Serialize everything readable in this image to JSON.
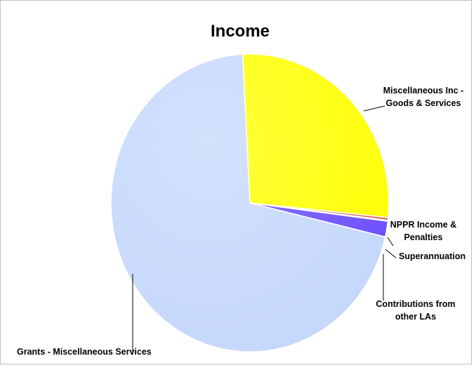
{
  "chart_data": {
    "type": "pie",
    "title": "Income",
    "categories": [
      "Miscellaneous Inc - Goods & Services",
      "NPPR Income & Penalties",
      "Superannuation",
      "Contributions from other LAs",
      "Grants - Miscellaneous Services"
    ],
    "values": [
      27.4,
      0.3,
      0.1,
      1.7,
      70.5
    ],
    "colors": [
      "#ffff00",
      "#e06060",
      "#a0a0ff",
      "#6a4cff",
      "#c4d7fb"
    ],
    "legend": "none",
    "data_labels": [
      [
        "Miscellaneous Inc -",
        "Goods & Services"
      ],
      [
        "NPPR Income &",
        "Penalties"
      ],
      [
        "Superannuation"
      ],
      [
        "Contributions from",
        "other LAs"
      ],
      [
        "Grants - Miscellaneous Services"
      ]
    ]
  }
}
